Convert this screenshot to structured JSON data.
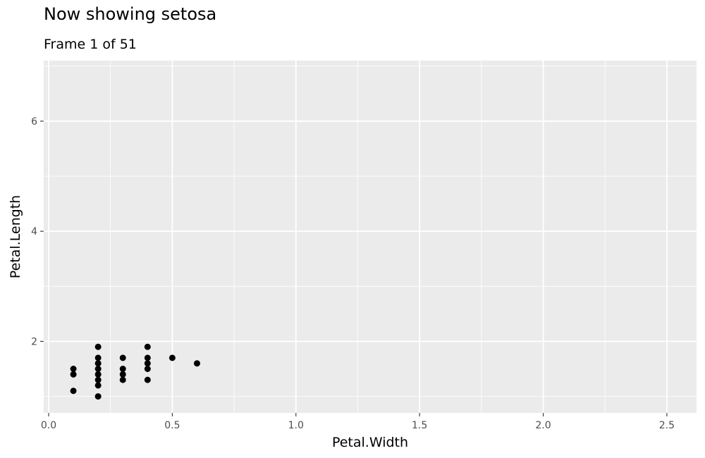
{
  "title": "Now showing setosa",
  "subtitle": "Frame 1 of 51",
  "chart_data": {
    "type": "scatter",
    "title": "Now showing setosa",
    "subtitle": "Frame 1 of 51",
    "xlabel": "Petal.Width",
    "ylabel": "Petal.Length",
    "xlim": [
      -0.02,
      2.62
    ],
    "ylim": [
      0.7,
      7.1
    ],
    "x_ticks": [
      0.0,
      0.5,
      1.0,
      1.5,
      2.0,
      2.5
    ],
    "x_tick_labels": [
      "0.0",
      "0.5",
      "1.0",
      "1.5",
      "2.0",
      "2.5"
    ],
    "y_ticks": [
      2,
      4,
      6
    ],
    "y_tick_labels": [
      "2",
      "4",
      "6"
    ],
    "grid": true,
    "legend": "none",
    "colors": {
      "panel": "#ebebeb",
      "grid": "#ffffff",
      "point": "#000000"
    },
    "points": [
      {
        "x": 0.1,
        "y": 1.1
      },
      {
        "x": 0.1,
        "y": 1.4
      },
      {
        "x": 0.1,
        "y": 1.5
      },
      {
        "x": 0.2,
        "y": 1.0
      },
      {
        "x": 0.2,
        "y": 1.2
      },
      {
        "x": 0.2,
        "y": 1.3
      },
      {
        "x": 0.2,
        "y": 1.4
      },
      {
        "x": 0.2,
        "y": 1.5
      },
      {
        "x": 0.2,
        "y": 1.6
      },
      {
        "x": 0.2,
        "y": 1.7
      },
      {
        "x": 0.2,
        "y": 1.9
      },
      {
        "x": 0.3,
        "y": 1.3
      },
      {
        "x": 0.3,
        "y": 1.4
      },
      {
        "x": 0.3,
        "y": 1.5
      },
      {
        "x": 0.3,
        "y": 1.7
      },
      {
        "x": 0.4,
        "y": 1.3
      },
      {
        "x": 0.4,
        "y": 1.5
      },
      {
        "x": 0.4,
        "y": 1.6
      },
      {
        "x": 0.4,
        "y": 1.7
      },
      {
        "x": 0.4,
        "y": 1.9
      },
      {
        "x": 0.5,
        "y": 1.7
      },
      {
        "x": 0.6,
        "y": 1.6
      }
    ]
  }
}
